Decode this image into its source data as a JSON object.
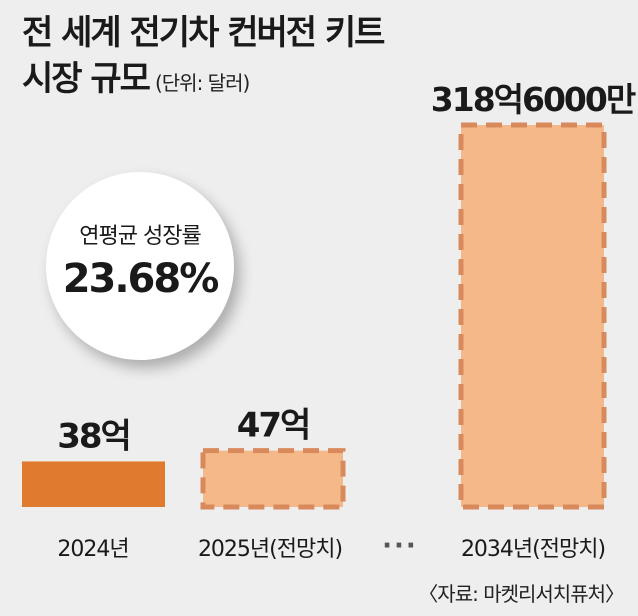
{
  "title_line1": "전 세계 전기차 컨버전 키트",
  "title_line2": "시장 규모",
  "unit_note": "(단위: 달러)",
  "cagr": {
    "label": "연평균 성장률",
    "value": "23.68%"
  },
  "ellipsis": "···",
  "source": "〈자료: 마켓리서치퓨처〉",
  "colors": {
    "actual": "#e07a2e",
    "forecast_fill": "#f5b888",
    "forecast_dash": "#d98a5c"
  },
  "chart_data": {
    "type": "bar",
    "categories": [
      "2024년",
      "2025년(전망치)",
      "2034년(전망치)"
    ],
    "values": [
      3800000000,
      4700000000,
      31860000000
    ],
    "value_labels": [
      "38억",
      "47억",
      "318억6000만"
    ],
    "forecast": [
      false,
      true,
      true
    ],
    "title": "전 세계 전기차 컨버전 키트 시장 규모",
    "ylabel": "",
    "xlabel": ""
  }
}
